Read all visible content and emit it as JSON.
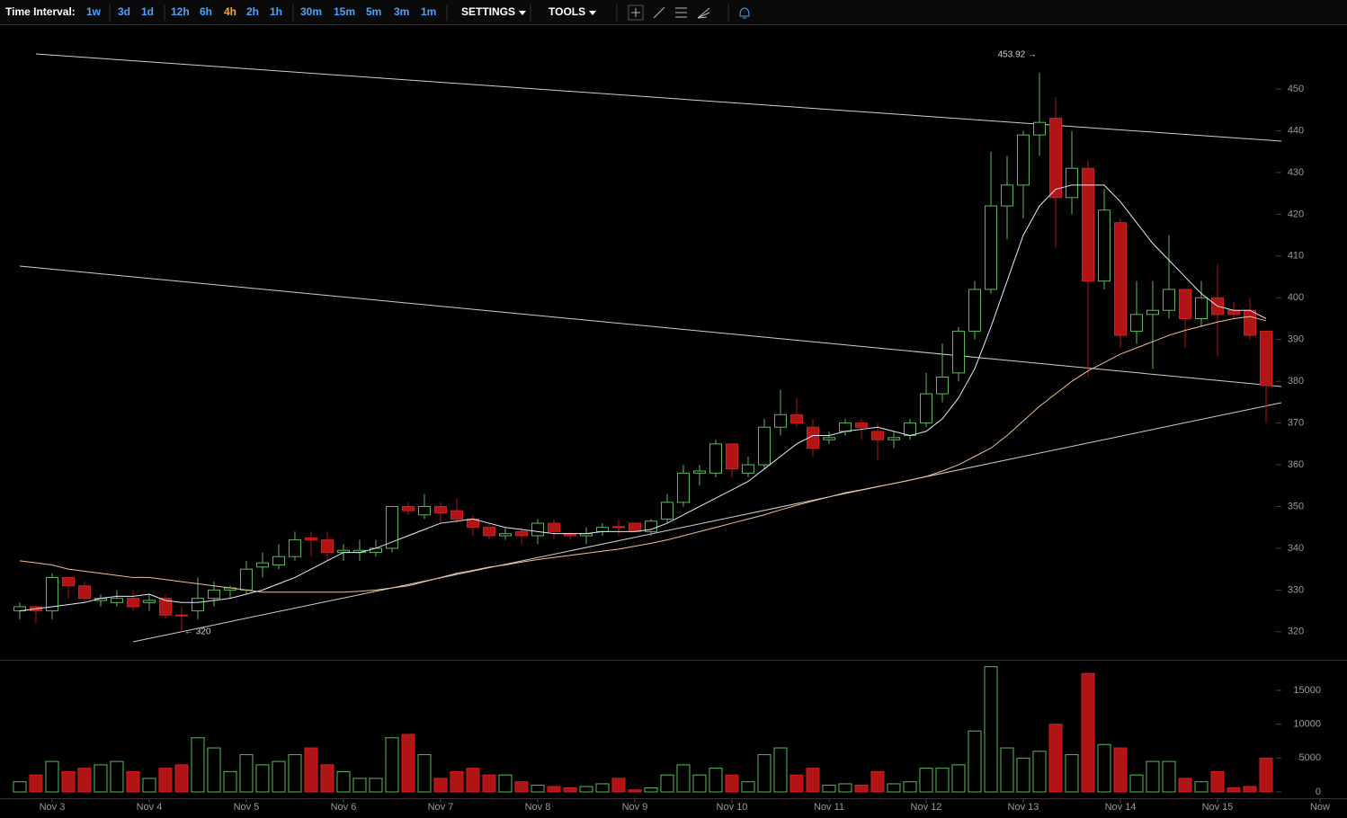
{
  "toolbar": {
    "label": "Time Interval:",
    "intervals": [
      "1w",
      "3d",
      "1d",
      "12h",
      "6h",
      "4h",
      "2h",
      "1h",
      "30m",
      "15m",
      "5m",
      "3m",
      "1m"
    ],
    "selected": "4h",
    "settings": "SETTINGS",
    "tools": "TOOLS"
  },
  "chart_data": {
    "type": "candlestick",
    "open": [
      325,
      326,
      325,
      333,
      331,
      327.5,
      327,
      328,
      327,
      328,
      324,
      325,
      328,
      330,
      330,
      335.5,
      336,
      338,
      342.5,
      342,
      339,
      339,
      339,
      340,
      350,
      348,
      350,
      349,
      347,
      345,
      343,
      344,
      343,
      346,
      343.5,
      343,
      344,
      345.2,
      346,
      344,
      347,
      351,
      358,
      358,
      365,
      358,
      360,
      369,
      372,
      369,
      366,
      368,
      370,
      368,
      366,
      367,
      370,
      377,
      382,
      392,
      402,
      422,
      427,
      439,
      443,
      424,
      431,
      404,
      418,
      392,
      396,
      397,
      402,
      395,
      400,
      397,
      397,
      392
    ],
    "high": [
      327,
      326,
      334,
      333,
      332,
      329,
      330,
      330,
      329,
      329,
      326,
      333,
      332,
      331,
      337,
      339,
      341,
      344,
      344,
      344,
      341,
      342,
      342,
      350,
      351,
      353,
      351,
      352,
      348,
      346,
      345,
      345,
      347,
      347,
      344,
      345,
      346,
      347,
      346,
      347,
      353,
      360,
      360,
      366,
      365,
      362,
      371,
      378,
      376,
      371,
      368,
      371,
      371,
      370,
      368,
      371,
      382,
      389,
      393,
      404,
      435,
      434,
      440,
      453.92,
      448,
      440,
      433,
      426,
      419,
      404,
      404,
      415,
      402,
      404,
      408,
      399,
      400,
      392
    ],
    "low": [
      323,
      322,
      323,
      328,
      327,
      326,
      326,
      325,
      325,
      323,
      320,
      323,
      326,
      328,
      329,
      333,
      335,
      337,
      338,
      337,
      337,
      337,
      338,
      339,
      348,
      347,
      346,
      346,
      343,
      342,
      342,
      341,
      341,
      342,
      342,
      341,
      343,
      343,
      344,
      343,
      346,
      350,
      355,
      357,
      357,
      357,
      359,
      367,
      369,
      362,
      365,
      367,
      366,
      361,
      364,
      366,
      369,
      375,
      380,
      390,
      401,
      414,
      419,
      434,
      412,
      420,
      381,
      402,
      388,
      389,
      383,
      395,
      388,
      393,
      386,
      395,
      390,
      370
    ],
    "close": [
      326,
      325,
      333,
      331,
      328,
      328,
      328,
      326,
      327.5,
      324,
      323.8,
      328,
      330,
      330.5,
      335,
      336.5,
      338,
      342,
      342,
      339,
      339.5,
      339.5,
      340,
      350,
      349,
      350,
      348.5,
      347,
      345,
      343,
      343.5,
      343,
      346,
      344,
      343,
      343.5,
      345,
      345,
      344,
      346.5,
      351,
      358,
      358.5,
      365,
      359,
      360,
      369,
      372,
      370,
      364,
      366.5,
      370,
      369,
      366,
      366.5,
      370,
      377,
      381,
      392,
      402,
      422,
      427,
      439,
      442,
      424,
      431,
      404,
      421,
      391,
      396,
      397,
      402,
      395,
      400,
      396,
      396,
      391,
      379
    ],
    "volume": [
      1500,
      2500,
      4500,
      3000,
      3500,
      4000,
      4500,
      3000,
      2000,
      3500,
      4000,
      8000,
      6500,
      3000,
      5500,
      4000,
      4500,
      5500,
      6500,
      4000,
      3000,
      2000,
      2000,
      8000,
      8500,
      5500,
      2000,
      3000,
      3500,
      2500,
      2500,
      1500,
      1000,
      800,
      600,
      800,
      1200,
      2000,
      300,
      600,
      2500,
      4000,
      2500,
      3500,
      2500,
      1500,
      5500,
      6500,
      2500,
      3500,
      1000,
      1200,
      1000,
      3000,
      1200,
      1500,
      3500,
      3500,
      4000,
      9000,
      18500,
      6500,
      5000,
      6000,
      10000,
      5500,
      17500,
      7000,
      6500,
      2500,
      4500,
      4500,
      2000,
      1500,
      3000,
      600,
      800,
      5000
    ],
    "series": [
      {
        "color": "#e6e6ff",
        "values": [
          325,
          325.5,
          326,
          326.5,
          327,
          328,
          328.5,
          328.5,
          329,
          327.5,
          327,
          327,
          327.5,
          328,
          329,
          330,
          331.5,
          333,
          335,
          337,
          339,
          339,
          340,
          341.5,
          343,
          344.5,
          346,
          346.5,
          347,
          346,
          345,
          344.5,
          344,
          343.5,
          343.5,
          343.5,
          344,
          344,
          344,
          344.5,
          346,
          348,
          350,
          352,
          354,
          356,
          359,
          362,
          365,
          367,
          367,
          368,
          368.5,
          369,
          368,
          367,
          368,
          371,
          376,
          383,
          393,
          404,
          415,
          422,
          426,
          427,
          427,
          427,
          423,
          418,
          413,
          409,
          405,
          401,
          398,
          397,
          397,
          395
        ]
      },
      {
        "color": "#f0c090",
        "values": [
          337,
          336.5,
          336,
          335,
          334.5,
          334,
          333.5,
          333,
          333,
          332.5,
          332,
          331.5,
          331,
          330.5,
          330,
          329.5,
          329.5,
          329.5,
          329.5,
          329.5,
          329.5,
          329.7,
          330,
          330.5,
          331,
          332,
          333,
          334,
          334.7,
          335.5,
          336,
          336.7,
          337.3,
          337.8,
          338.3,
          338.8,
          339.3,
          339.8,
          340.5,
          341.2,
          342,
          343,
          344,
          345,
          346,
          347,
          348,
          349.2,
          350.3,
          351.3,
          352.3,
          353.3,
          354,
          354.8,
          355.5,
          356.3,
          357.2,
          358.5,
          360,
          362,
          364,
          367,
          370.5,
          374,
          377,
          380,
          382.5,
          384.5,
          386.5,
          388,
          389.5,
          391,
          392.2,
          393.2,
          394.2,
          395,
          395.5,
          394.5
        ]
      }
    ],
    "up_color": "#5cb85c",
    "down_color": "#b01414",
    "xlim": [
      -1.22,
      82
    ],
    "xticks": [
      {
        "value": 2,
        "label": "Nov 3"
      },
      {
        "value": 8,
        "label": "Nov 4"
      },
      {
        "value": 14,
        "label": "Nov 5"
      },
      {
        "value": 20,
        "label": "Nov 6"
      },
      {
        "value": 26,
        "label": "Nov 7"
      },
      {
        "value": 32,
        "label": "Nov 8"
      },
      {
        "value": 38,
        "label": "Nov 9"
      },
      {
        "value": 44,
        "label": "Nov 10"
      },
      {
        "value": 50,
        "label": "Nov 11"
      },
      {
        "value": 56,
        "label": "Nov 12"
      },
      {
        "value": 62,
        "label": "Nov 13"
      },
      {
        "value": 68,
        "label": "Nov 14"
      },
      {
        "value": 74,
        "label": "Nov 15"
      },
      {
        "value": 80.33,
        "label": "Now"
      }
    ],
    "ylim": [
      313.5,
      465.3
    ],
    "yticks": [
      320,
      330,
      340,
      350,
      360,
      370,
      380,
      390,
      400,
      410,
      420,
      430,
      440,
      450
    ],
    "vlim": [
      0,
      19381
    ],
    "vticks": [
      0,
      5000,
      10000,
      15000
    ],
    "annotations": [
      {
        "text": "453.92 →",
        "x": 63,
        "value": 453.92
      },
      {
        "text": "← 320",
        "x": 10,
        "value": 320
      }
    ]
  }
}
